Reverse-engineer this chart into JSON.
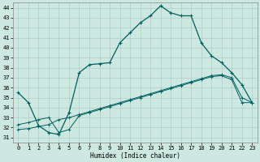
{
  "xlabel": "Humidex (Indice chaleur)",
  "ylabel": "",
  "bg_color": "#cce8e0",
  "grid_color": "#b8d8d0",
  "line_color": "#006060",
  "xlim": [
    -0.5,
    23.5
  ],
  "ylim": [
    30.5,
    44.5
  ],
  "xticks": [
    0,
    1,
    2,
    3,
    4,
    5,
    6,
    7,
    8,
    9,
    10,
    11,
    12,
    13,
    14,
    15,
    16,
    17,
    18,
    19,
    20,
    21,
    22,
    23
  ],
  "yticks": [
    31,
    32,
    33,
    34,
    35,
    36,
    37,
    38,
    39,
    40,
    41,
    42,
    43,
    44
  ],
  "line1_x": [
    0,
    1,
    2,
    3,
    4,
    5,
    6,
    7,
    8,
    9,
    10,
    11,
    12,
    13,
    14,
    15,
    16,
    17,
    18,
    19,
    20,
    21,
    22,
    23
  ],
  "line1_y": [
    35.5,
    34.5,
    32.2,
    31.5,
    31.3,
    33.5,
    37.5,
    38.3,
    38.4,
    38.5,
    40.5,
    41.5,
    42.5,
    43.2,
    44.2,
    43.5,
    43.2,
    43.2,
    40.5,
    39.2,
    38.5,
    37.5,
    36.3,
    34.5
  ],
  "line2_x": [
    0,
    1,
    2,
    3,
    4,
    5,
    6,
    7,
    8,
    9,
    10,
    11,
    12,
    13,
    14,
    15,
    16,
    17,
    18,
    19,
    20,
    21,
    22,
    23
  ],
  "line2_y": [
    31.8,
    31.9,
    32.1,
    32.3,
    32.8,
    33.0,
    33.3,
    33.6,
    33.9,
    34.2,
    34.5,
    34.8,
    35.1,
    35.4,
    35.7,
    36.0,
    36.3,
    36.6,
    36.9,
    37.2,
    37.3,
    37.0,
    35.0,
    34.5
  ],
  "line3_x": [
    0,
    1,
    2,
    3,
    4,
    5,
    6,
    7,
    8,
    9,
    10,
    11,
    12,
    13,
    14,
    15,
    16,
    17,
    18,
    19,
    20,
    21,
    22,
    23
  ],
  "line3_y": [
    32.3,
    32.5,
    32.8,
    33.0,
    31.5,
    31.8,
    33.2,
    33.5,
    33.8,
    34.1,
    34.4,
    34.7,
    35.0,
    35.3,
    35.6,
    35.9,
    36.2,
    36.5,
    36.8,
    37.1,
    37.2,
    36.8,
    34.5,
    34.5
  ]
}
